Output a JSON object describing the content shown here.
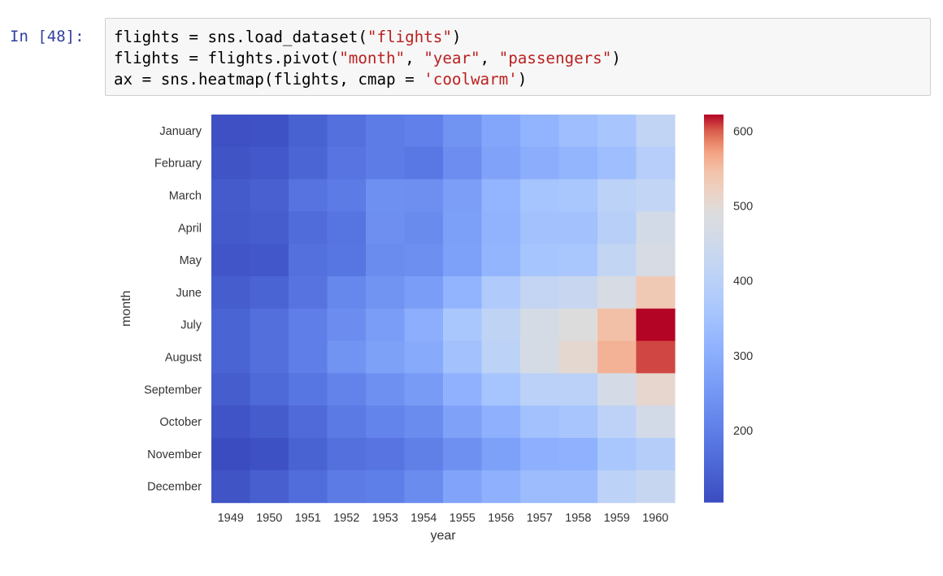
{
  "prompt": "In [48]:",
  "code_lines": [
    [
      {
        "t": "flights = sns.load_dataset(",
        "c": "plain"
      },
      {
        "t": "\"flights\"",
        "c": "str"
      },
      {
        "t": ")",
        "c": "plain"
      }
    ],
    [
      {
        "t": "flights = flights.pivot(",
        "c": "plain"
      },
      {
        "t": "\"month\"",
        "c": "str"
      },
      {
        "t": ", ",
        "c": "plain"
      },
      {
        "t": "\"year\"",
        "c": "str"
      },
      {
        "t": ", ",
        "c": "plain"
      },
      {
        "t": "\"passengers\"",
        "c": "str"
      },
      {
        "t": ")",
        "c": "plain"
      }
    ],
    [
      {
        "t": "ax = sns.heatmap(flights, cmap = ",
        "c": "plain"
      },
      {
        "t": "'coolwarm'",
        "c": "str"
      },
      {
        "t": ")",
        "c": "plain"
      }
    ]
  ],
  "chart_data": {
    "type": "heatmap",
    "xlabel": "year",
    "ylabel": "month",
    "x": [
      "1949",
      "1950",
      "1951",
      "1952",
      "1953",
      "1954",
      "1955",
      "1956",
      "1957",
      "1958",
      "1959",
      "1960"
    ],
    "y": [
      "January",
      "February",
      "March",
      "April",
      "May",
      "June",
      "July",
      "August",
      "September",
      "October",
      "November",
      "December"
    ],
    "values": [
      [
        112,
        115,
        145,
        171,
        196,
        204,
        242,
        284,
        315,
        340,
        360,
        417
      ],
      [
        118,
        126,
        150,
        180,
        196,
        188,
        233,
        277,
        301,
        318,
        342,
        391
      ],
      [
        132,
        141,
        178,
        193,
        236,
        235,
        267,
        317,
        356,
        362,
        406,
        419
      ],
      [
        129,
        135,
        163,
        181,
        235,
        227,
        269,
        313,
        348,
        348,
        396,
        461
      ],
      [
        121,
        125,
        172,
        183,
        229,
        234,
        270,
        318,
        355,
        363,
        420,
        472
      ],
      [
        135,
        149,
        178,
        218,
        243,
        264,
        315,
        374,
        422,
        435,
        472,
        535
      ],
      [
        148,
        170,
        199,
        230,
        264,
        302,
        364,
        413,
        465,
        491,
        548,
        622
      ],
      [
        148,
        170,
        199,
        242,
        272,
        293,
        347,
        405,
        467,
        505,
        559,
        606
      ],
      [
        136,
        158,
        184,
        209,
        237,
        259,
        312,
        355,
        404,
        404,
        463,
        508
      ],
      [
        119,
        133,
        162,
        191,
        211,
        229,
        274,
        306,
        347,
        359,
        407,
        461
      ],
      [
        104,
        114,
        146,
        172,
        180,
        203,
        237,
        271,
        305,
        310,
        362,
        390
      ],
      [
        118,
        140,
        166,
        194,
        201,
        229,
        278,
        306,
        336,
        337,
        405,
        432
      ]
    ],
    "cmap": "coolwarm",
    "colorbar": {
      "ticks": [
        200,
        300,
        400,
        500,
        600
      ],
      "min": 104,
      "max": 622
    }
  }
}
